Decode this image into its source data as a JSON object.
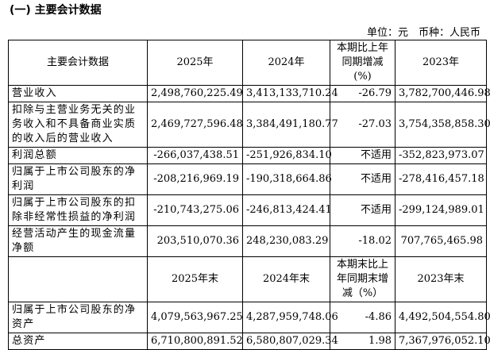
{
  "heading": "(一) 主要会计数据",
  "unit": "单位：元　币种：人民币",
  "table": {
    "header": [
      [
        "主要会计数据"
      ],
      [
        "2025年"
      ],
      [
        "2024年"
      ],
      [
        "本期比上年",
        "同期增减",
        "(%)"
      ],
      [
        "2023年"
      ]
    ],
    "rows": [
      [
        "营业收入",
        "2,498,760,225.49",
        "3,413,133,710.24",
        "-26.79",
        "3,782,700,446.98"
      ],
      [
        "扣除与主营业务无关的业务收入和不具备商业实质的收入后的营业收入",
        "2,469,727,596.48",
        "3,384,491,180.77",
        "-27.03",
        "3,754,358,858.30"
      ],
      [
        "利润总额",
        "-266,037,438.51",
        "-251,926,834.10",
        "不适用",
        "-352,823,973.07"
      ],
      [
        "归属于上市公司股东的净利润",
        "-208,216,969.19",
        "-190,318,664.86",
        "不适用",
        "-278,416,457.18"
      ],
      [
        "归属于上市公司股东的扣除非经常性损益的净利润",
        "-210,743,275.06",
        "-246,813,424.41",
        "不适用",
        "-299,124,989.01"
      ],
      [
        "经营活动产生的现金流量净额",
        "203,510,070.36",
        "248,230,083.29",
        "-18.02",
        "707,765,465.98"
      ]
    ],
    "header2": [
      null,
      [
        "2025年末"
      ],
      [
        "2024年末"
      ],
      [
        "本期末比上",
        "年同期末增",
        "减（%）"
      ],
      [
        "2023年末"
      ]
    ],
    "rows2": [
      [
        "归属于上市公司股东的净资产",
        "4,079,563,967.25",
        "4,287,959,748.06",
        "-4.86",
        "4,492,504,554.80"
      ],
      [
        "总资产",
        "6,710,800,891.52",
        "6,580,807,029.34",
        "1.98",
        "7,367,976,052.10"
      ]
    ]
  }
}
